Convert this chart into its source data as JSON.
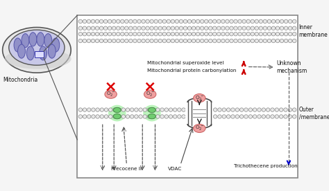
{
  "bg_color": "#f5f5f5",
  "box_bg": "#ffffff",
  "box_edge": "#888888",
  "mito_outer_fill": "#e8e8e8",
  "mito_outer_edge": "#555555",
  "mito_shadow_fill": "#cccccc",
  "mito_inner_fill": "#c8c8e8",
  "mito_inner_edge": "#555555",
  "crista_fill": "#9090c8",
  "crista_edge": "#5555aa",
  "zoom_box_fill": "#ccccee",
  "zoom_box_edge": "#444466",
  "head_color": "#e8e8e8",
  "tail_color": "#aaaaaa",
  "green_blob": "#90ee90",
  "green_protein": "#70cc70",
  "green_protein_edge": "#448844",
  "pink_oval_fill": "#f0a0a0",
  "pink_oval_edge": "#cc6666",
  "red_x": "#dd0000",
  "red_arrow": "#cc0000",
  "blue_arrow": "#0000cc",
  "dark_arrow": "#222222",
  "dashed_color": "#666666",
  "label_color": "#111111",
  "line_color": "#555555",
  "vdac_barrel_fill": "#eeeeee",
  "vdac_barrel_edge": "#555555",
  "inner_membrane_label": "Inner\nmembrane",
  "outer_membrane_label": "Outer\n/membrane",
  "superoxide_label": "Mitochondrial superoxide level",
  "carbonylation_label": "Mitochondrial protein carbonylation",
  "unknown_label": "Unknown\nmechanism",
  "trichothecene_label": "Trichothecene production",
  "precocene_label": "Precocene II",
  "vdac_label": "VDAC",
  "mito_label": "Mitochondria",
  "figsize": [
    4.74,
    2.76
  ],
  "dpi": 100
}
